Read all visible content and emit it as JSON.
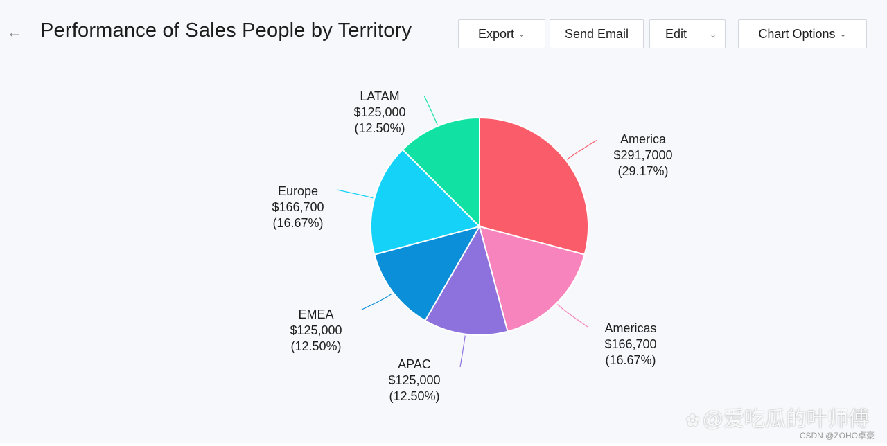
{
  "header": {
    "back_icon": "arrow-left-icon",
    "title": "Performance of Sales People by Territory",
    "buttons": {
      "export": "Export",
      "send_email": "Send Email",
      "edit": "Edit",
      "chart_options": "Chart Options"
    },
    "dropdown_icon": "chevron-down-icon"
  },
  "chart_data": {
    "type": "pie",
    "slices": [
      {
        "name": "America",
        "value_label": "$291,7000",
        "percent_label": "(29.17%)",
        "percent": 29.17,
        "color": "#fa5c6a"
      },
      {
        "name": "Americas",
        "value_label": "$166,700",
        "percent_label": "(16.67%)",
        "percent": 16.67,
        "color": "#f784bd"
      },
      {
        "name": "APAC",
        "value_label": "$125,000",
        "percent_label": "(12.50%)",
        "percent": 12.5,
        "color": "#8d72de"
      },
      {
        "name": "EMEA",
        "value_label": "$125,000",
        "percent_label": "(12.50%)",
        "percent": 12.5,
        "color": "#0a8fd8"
      },
      {
        "name": "Europe",
        "value_label": "$166,700",
        "percent_label": "(16.67%)",
        "percent": 16.67,
        "color": "#14d2f8"
      },
      {
        "name": "LATAM",
        "value_label": "$125,000",
        "percent_label": "(12.50%)",
        "percent": 12.5,
        "color": "#12e1a4"
      }
    ]
  },
  "watermark": {
    "text": "@爱吃瓜的叶师傅",
    "icon": "paw-icon",
    "credit": "CSDN @ZOHO卓豪"
  }
}
